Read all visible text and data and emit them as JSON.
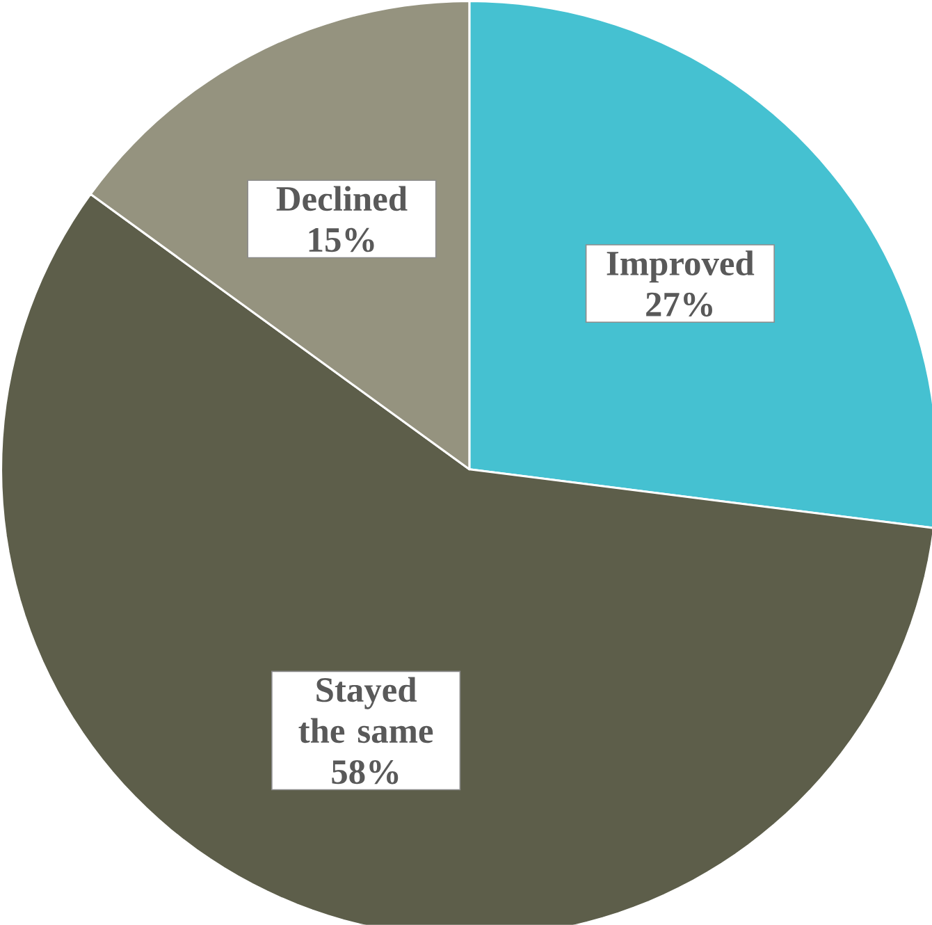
{
  "chart_data": {
    "type": "pie",
    "categories": [
      "Improved",
      "Stayed the same",
      "Declined"
    ],
    "values": [
      27,
      58,
      15
    ],
    "colors": [
      "#45c1d1",
      "#5d5e4a",
      "#95937f"
    ],
    "value_labels": [
      "27%",
      "58%",
      "15%"
    ]
  }
}
